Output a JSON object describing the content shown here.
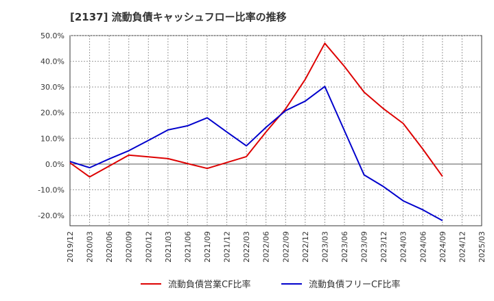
{
  "chart_data": {
    "type": "line",
    "title": "[2137]  流動負債キャッシュフロー比率の推移",
    "xlabel": "",
    "ylabel": "",
    "ylim": [
      -0.24,
      0.5
    ],
    "yticks": [
      0.5,
      0.4,
      0.3,
      0.2,
      0.1,
      0.0,
      -0.1,
      -0.2
    ],
    "ytick_labels": [
      "50.0%",
      "40.0%",
      "30.0%",
      "20.0%",
      "10.0%",
      "0.0%",
      "-10.0%",
      "-20.0%"
    ],
    "x": [
      "2019/12",
      "2020/03",
      "2020/06",
      "2020/09",
      "2020/12",
      "2021/03",
      "2021/06",
      "2021/09",
      "2021/12",
      "2022/03",
      "2022/06",
      "2022/09",
      "2022/12",
      "2023/03",
      "2023/06",
      "2023/09",
      "2023/12",
      "2024/03",
      "2024/06",
      "2024/09",
      "2024/12",
      "2025/03"
    ],
    "grid": true,
    "legend_position": "bottom",
    "series": [
      {
        "name": "流動負債営業CF比率",
        "color": "#dd0000",
        "values": [
          0.005,
          -0.05,
          -0.008,
          0.035,
          0.028,
          0.021,
          0.002,
          -0.017,
          0.006,
          0.029,
          0.125,
          0.215,
          0.33,
          0.47,
          0.38,
          0.28,
          0.215,
          0.158,
          0.058,
          -0.048,
          null,
          null
        ]
      },
      {
        "name": "流動負債フリーCF比率",
        "color": "#0000cc",
        "values": [
          0.01,
          -0.014,
          0.02,
          0.052,
          0.092,
          0.133,
          0.149,
          0.18,
          0.125,
          0.071,
          0.143,
          0.208,
          0.245,
          0.302,
          0.13,
          -0.042,
          -0.088,
          -0.143,
          -0.178,
          -0.22,
          null,
          null
        ]
      }
    ]
  }
}
